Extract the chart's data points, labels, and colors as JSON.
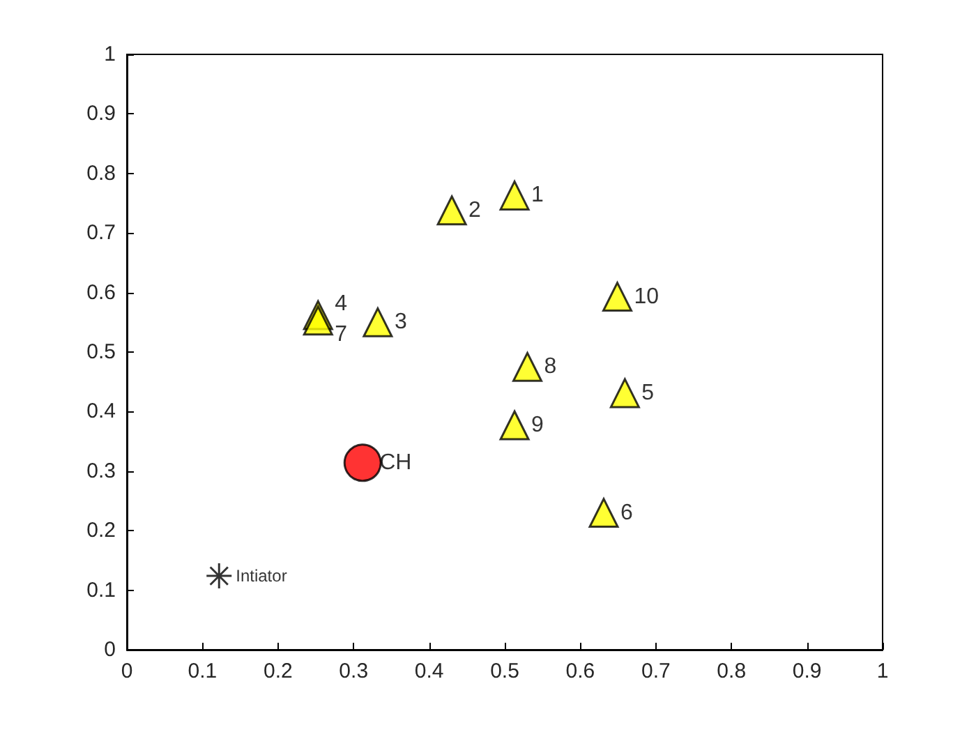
{
  "chart_data": {
    "type": "scatter",
    "xlim": [
      0,
      1
    ],
    "ylim": [
      0,
      1
    ],
    "xticks": [
      0,
      0.1,
      0.2,
      0.3,
      0.4,
      0.5,
      0.6,
      0.7,
      0.8,
      0.9,
      1
    ],
    "yticks": [
      0,
      0.1,
      0.2,
      0.3,
      0.4,
      0.5,
      0.6,
      0.7,
      0.8,
      0.9,
      1
    ],
    "grid": false,
    "series": [
      {
        "color": "#ffff00",
        "marker": "triangle",
        "x": [
          0.513,
          0.43,
          0.332,
          0.253,
          0.659,
          0.631,
          0.253,
          0.53,
          0.513,
          0.649
        ],
        "values": [
          0.763,
          0.738,
          0.55,
          0.562,
          0.431,
          0.23,
          0.553,
          0.475,
          0.377,
          0.593
        ]
      },
      {
        "color": "#ff0000",
        "marker": "circle",
        "x": [
          0.312
        ],
        "values": [
          0.314
        ]
      },
      {
        "color": "#000000",
        "marker": "cross",
        "x": [
          0.122
        ],
        "values": [
          0.124
        ]
      }
    ],
    "annotations": [
      {
        "text": "1",
        "x": 0.513,
        "y": 0.763
      },
      {
        "text": "2",
        "x": 0.43,
        "y": 0.738
      },
      {
        "text": "3",
        "x": 0.332,
        "y": 0.55
      },
      {
        "text": "4",
        "x": 0.253,
        "y": 0.562
      },
      {
        "text": "5",
        "x": 0.659,
        "y": 0.431
      },
      {
        "text": "6",
        "x": 0.631,
        "y": 0.23
      },
      {
        "text": "7",
        "x": 0.253,
        "y": 0.553
      },
      {
        "text": "8",
        "x": 0.53,
        "y": 0.475
      },
      {
        "text": "9",
        "x": 0.513,
        "y": 0.377
      },
      {
        "text": "10",
        "x": 0.649,
        "y": 0.593
      },
      {
        "text": "CH",
        "x": 0.312,
        "y": 0.314
      },
      {
        "text": "Intiator",
        "x": 0.122,
        "y": 0.124
      }
    ]
  }
}
